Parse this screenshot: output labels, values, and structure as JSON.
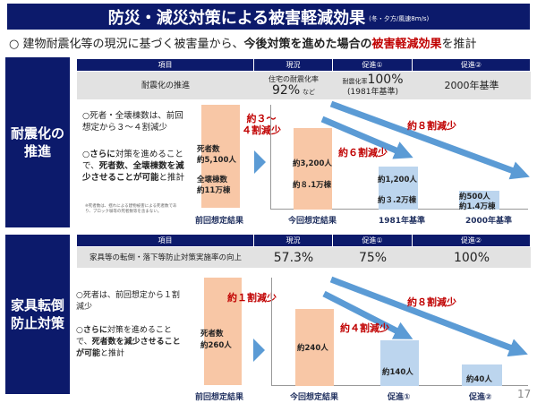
{
  "title": {
    "main": "防災・減災対策による被害軽減効果",
    "sub": "(冬・夕方/風速8m/s)"
  },
  "lead": {
    "pre": "○ 建物耐震化等の現況に基づく被害量から、",
    "bold": "今後対策を進めた場合の",
    "red": "被害軽減効果",
    "post": "を推計"
  },
  "colors": {
    "navy": "#0c1a6b",
    "orange_bar": "#f8c7a6",
    "blue_bar": "#bcd5ee",
    "arrow": "#5b9bd5",
    "red": "#c00000"
  },
  "headers": [
    "項目",
    "現況",
    "促進①",
    "促進②"
  ],
  "s1": {
    "side": [
      "耐震化の",
      "推進"
    ],
    "row": {
      "item": "耐震化の推進",
      "cur_small": "住宅の耐震化率",
      "cur_big": "92%",
      "cur_suffix": "など",
      "p1_small": "耐震化率",
      "p1_big": "100%",
      "p1_sub": "(1981年基準)",
      "p2": "2000年基準"
    },
    "b1": "○死者・全壊棟数は、前回想定から３～４割減少",
    "b2_pre": "○",
    "b2_bold1": "さらに",
    "b2_mid": "対策を進めることで、",
    "b2_bold2": "死者数、全壊棟数を減少させることが可能",
    "b2_post": "と推計",
    "note": "※死者数は、揺れによる建物被害による死者数であり、ブロック塀等の死者数等を含まない。",
    "prev": {
      "l1": "死者数",
      "l2": "約5,100人",
      "l3": "全壊棟数",
      "l4": "約11万棟",
      "cap": "前回想定結果"
    },
    "red_prev": [
      "約３～",
      "４割減少"
    ],
    "bars": [
      {
        "l1": "約3,200人",
        "l2": "約８.1万棟",
        "cap": "今回想定結果"
      },
      {
        "l1": "約1,200人",
        "l2": "約３.2万棟",
        "cap": "1981年基準"
      },
      {
        "l1": "約500人",
        "l2": "約1.4万棟",
        "cap": "2000年基準"
      }
    ],
    "red6": "約６割減少",
    "red8": "約８割減少"
  },
  "s2": {
    "side": [
      "家具転倒",
      "防止対策"
    ],
    "row": {
      "item": "家具等の転倒・落下等防止対策実施率の向上",
      "cur": "57.3%",
      "p1": "75%",
      "p2": "100%"
    },
    "b1": "○死者は、前回想定から１割減少",
    "b2_pre": "○",
    "b2_bold1": "さらに",
    "b2_mid": "対策を進めることで、",
    "b2_bold2": "死者数を減少させることが可能",
    "b2_post": "と推計",
    "prev": {
      "l1": "死者数",
      "l2": "約260人",
      "cap": "前回想定結果"
    },
    "red_prev": "約１割減少",
    "bars": [
      {
        "l1": "約240人",
        "cap": "今回想定結果"
      },
      {
        "l1": "約140人",
        "cap": "促進①"
      },
      {
        "l1": "約40人",
        "cap": "促進②"
      }
    ],
    "red4": "約４割減少",
    "red8": "約８割減少"
  },
  "page": "17"
}
